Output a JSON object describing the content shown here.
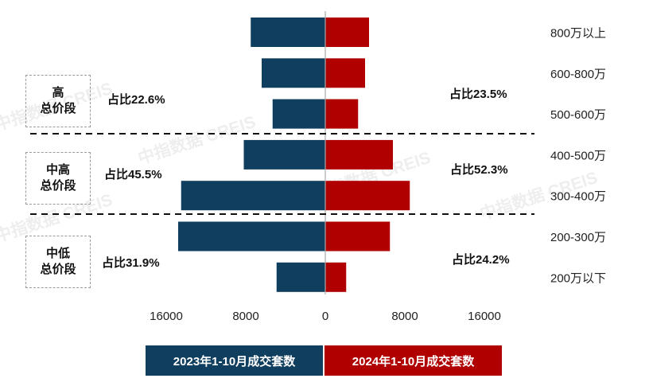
{
  "chart_data": {
    "type": "bar",
    "orientation": "horizontal-butterfly",
    "categories": [
      "800万以上",
      "600-800万",
      "500-600万",
      "400-500万",
      "300-400万",
      "200-300万",
      "200万以下"
    ],
    "series": [
      {
        "name": "2023年1-10月成交套数",
        "side": "left",
        "color": "#0f3e5e",
        "values": [
          7500,
          6400,
          5300,
          8200,
          14500,
          14800,
          4900
        ]
      },
      {
        "name": "2024年1-10月成交套数",
        "side": "right",
        "color": "#b00000",
        "values": [
          4400,
          4000,
          3300,
          6800,
          8500,
          6500,
          2100
        ]
      }
    ],
    "xlim": [
      -16000,
      16000
    ],
    "xticks": [
      {
        "v": -16000,
        "label": "16000"
      },
      {
        "v": -8000,
        "label": "8000"
      },
      {
        "v": 0,
        "label": "0"
      },
      {
        "v": 8000,
        "label": "8000"
      },
      {
        "v": 16000,
        "label": "16000"
      }
    ],
    "title": "",
    "xlabel": "",
    "ylabel": "",
    "groups": [
      {
        "line1": "高",
        "line2": "总价段",
        "left_pct": "占比22.6%",
        "right_pct": "占比23.5%"
      },
      {
        "line1": "中高",
        "line2": "总价段",
        "left_pct": "占比45.5%",
        "right_pct": "占比52.3%"
      },
      {
        "line1": "中低",
        "line2": "总价段",
        "left_pct": "占比31.9%",
        "right_pct": "占比24.2%"
      }
    ],
    "legend_position": "bottom-center",
    "watermark": "中指数据 CREIS"
  }
}
